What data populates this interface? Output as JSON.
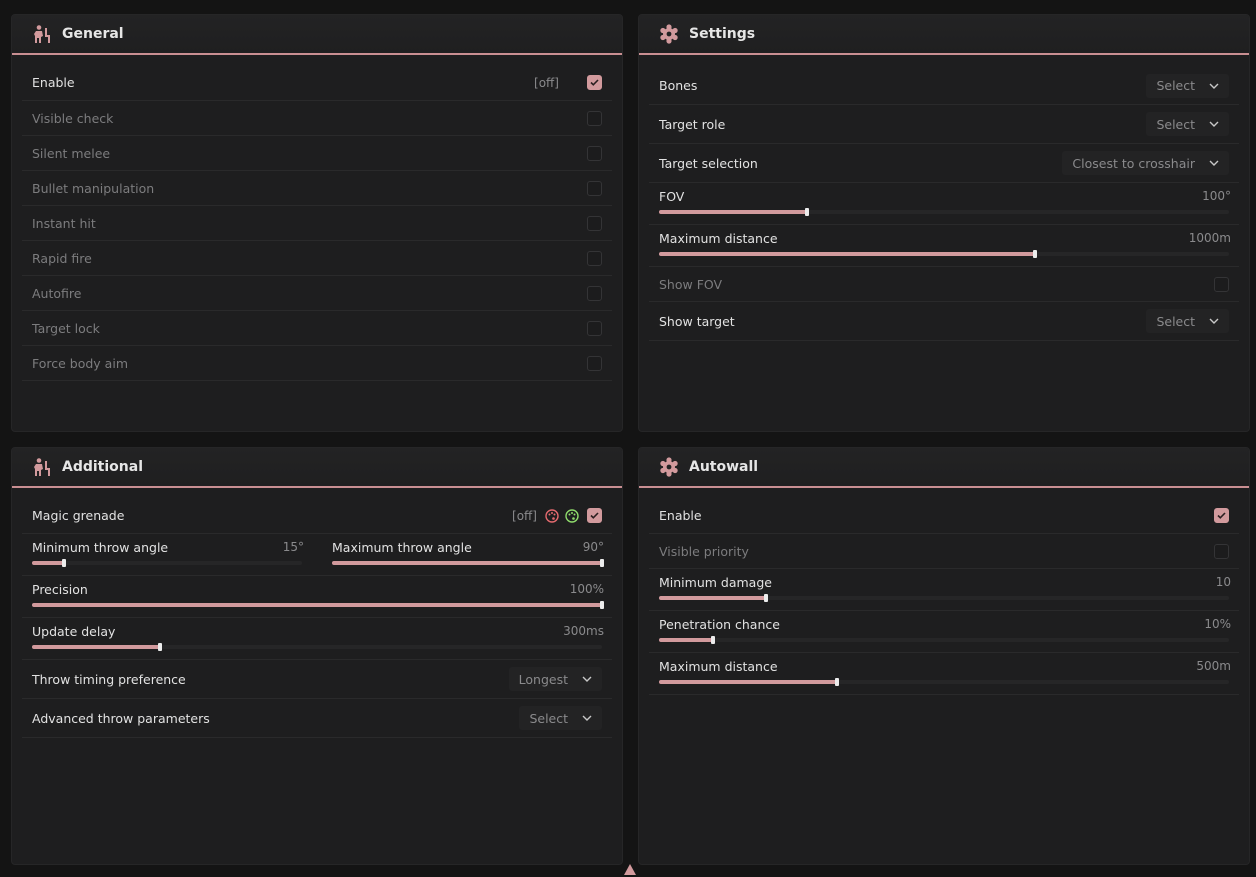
{
  "colors": {
    "accent": "#d29a9d",
    "bg": "#141414",
    "panel": "#1e1e1f"
  },
  "general": {
    "title": "General",
    "icon": "person-stance-icon",
    "enable": {
      "label": "Enable",
      "tag": "[off]",
      "checked": true
    },
    "items": [
      {
        "label": "Visible check",
        "checked": false
      },
      {
        "label": "Silent melee",
        "checked": false
      },
      {
        "label": "Bullet manipulation",
        "checked": false
      },
      {
        "label": "Instant hit",
        "checked": false
      },
      {
        "label": "Rapid fire",
        "checked": false
      },
      {
        "label": "Autofire",
        "checked": false
      },
      {
        "label": "Target lock",
        "checked": false
      },
      {
        "label": "Force body aim",
        "checked": false
      }
    ]
  },
  "settings": {
    "title": "Settings",
    "icon": "gear-icon",
    "bones": {
      "label": "Bones",
      "value": "Select"
    },
    "target_role": {
      "label": "Target role",
      "value": "Select"
    },
    "target_selection": {
      "label": "Target selection",
      "value": "Closest to crosshair"
    },
    "fov": {
      "label": "FOV",
      "value": "100°",
      "fraction": 0.26
    },
    "max_distance": {
      "label": "Maximum distance",
      "value": "1000m",
      "fraction": 0.66
    },
    "show_fov": {
      "label": "Show FOV",
      "checked": false
    },
    "show_target": {
      "label": "Show target",
      "value": "Select"
    }
  },
  "additional": {
    "title": "Additional",
    "icon": "person-stance-icon",
    "magic_grenade": {
      "label": "Magic grenade",
      "tag": "[off]",
      "checked": true
    },
    "min_throw_angle": {
      "label": "Minimum throw angle",
      "value": "15°",
      "fraction": 0.12
    },
    "max_throw_angle": {
      "label": "Maximum throw angle",
      "value": "90°",
      "fraction": 1.0
    },
    "precision": {
      "label": "Precision",
      "value": "100%",
      "fraction": 1.0
    },
    "update_delay": {
      "label": "Update delay",
      "value": "300ms",
      "fraction": 0.225
    },
    "throw_timing": {
      "label": "Throw timing preference",
      "value": "Longest"
    },
    "advanced_params": {
      "label": "Advanced throw parameters",
      "value": "Select"
    }
  },
  "autowall": {
    "title": "Autowall",
    "icon": "gear-icon",
    "enable": {
      "label": "Enable",
      "checked": true
    },
    "visible_priority": {
      "label": "Visible priority",
      "checked": false
    },
    "min_damage": {
      "label": "Minimum damage",
      "value": "10",
      "fraction": 0.187
    },
    "penetration": {
      "label": "Penetration chance",
      "value": "10%",
      "fraction": 0.094
    },
    "max_distance": {
      "label": "Maximum distance",
      "value": "500m",
      "fraction": 0.313
    }
  }
}
